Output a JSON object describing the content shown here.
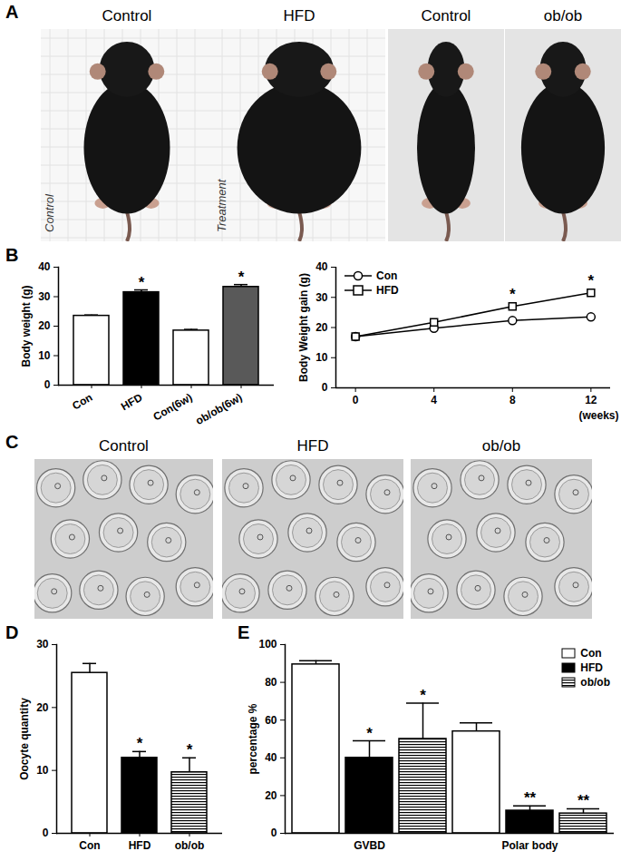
{
  "chart_data": [
    {
      "type": "image",
      "panel": "A",
      "labels": [
        "Control",
        "HFD",
        "Control",
        "ob/ob"
      ],
      "annotations": [
        "Control",
        "Treatment"
      ]
    },
    {
      "type": "bar",
      "panel": "B",
      "ylabel": "Body weight (g)",
      "categories": [
        "Con",
        "HFD",
        "Con(6w)",
        "ob/ob(6w)"
      ],
      "values": [
        23.5,
        31.5,
        18.5,
        33.3
      ],
      "errors": [
        0.3,
        0.8,
        0.4,
        0.8
      ],
      "colors": [
        "#ffffff",
        "#000000",
        "#ffffff",
        "#595959"
      ],
      "significance": [
        null,
        "*",
        null,
        "*"
      ],
      "ylim": [
        0,
        40
      ],
      "yticks": [
        0,
        10,
        20,
        30,
        40
      ]
    },
    {
      "type": "line",
      "ylabel": "Body Weight gain (g)",
      "xlabel": "(weeks)",
      "x": [
        0,
        4,
        8,
        12
      ],
      "series": [
        {
          "name": "Con",
          "color": "#000000",
          "marker": "circle",
          "values": [
            17,
            19.8,
            22.3,
            23.5
          ]
        },
        {
          "name": "HFD",
          "color": "#000000",
          "marker": "square",
          "values": [
            17,
            21.7,
            27,
            31.5
          ],
          "significance": [
            null,
            null,
            "*",
            "*"
          ]
        }
      ],
      "xlim": [
        -1,
        13
      ],
      "xticks": [
        0,
        4,
        8,
        12
      ],
      "ylim": [
        0,
        40
      ],
      "yticks": [
        0,
        10,
        20,
        30,
        40
      ],
      "legend": "top-left"
    },
    {
      "type": "image",
      "panel": "C",
      "labels": [
        "Control",
        "HFD",
        "ob/ob"
      ]
    },
    {
      "type": "bar",
      "panel": "D",
      "ylabel": "Oocyte quantity",
      "categories": [
        "Con",
        "HFD",
        "ob/ob"
      ],
      "values": [
        25.5,
        12,
        9.7
      ],
      "errors": [
        1.5,
        1,
        2.3
      ],
      "colors": [
        "#ffffff",
        "#000000",
        "hatched"
      ],
      "significance": [
        null,
        "*",
        "*"
      ],
      "ylim": [
        0,
        30
      ],
      "yticks": [
        0,
        10,
        20,
        30
      ]
    },
    {
      "type": "grouped_bar",
      "panel": "E",
      "ylabel": "percentage %",
      "categories": [
        "GVBD",
        "Polar body"
      ],
      "series": [
        {
          "name": "Con",
          "color": "#ffffff",
          "values": [
            89.5,
            54
          ],
          "errors": [
            2,
            4.5
          ]
        },
        {
          "name": "HFD",
          "color": "#000000",
          "values": [
            40,
            12
          ],
          "errors": [
            9,
            2.5
          ],
          "significance": [
            "*",
            "**"
          ]
        },
        {
          "name": "ob/ob",
          "color": "hatched",
          "values": [
            50,
            10.5
          ],
          "errors": [
            19,
            2.5
          ],
          "significance": [
            "*",
            "**"
          ]
        }
      ],
      "ylim": [
        0,
        100
      ],
      "yticks": [
        0,
        20,
        40,
        60,
        80,
        100
      ],
      "legend": "top-right"
    }
  ]
}
